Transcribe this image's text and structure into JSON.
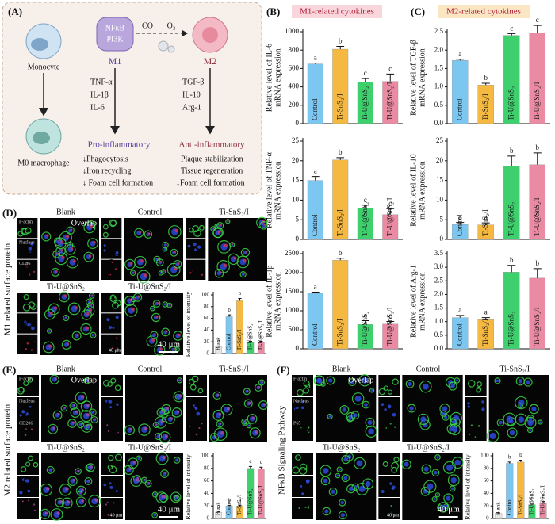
{
  "panel_a": {
    "label": "(A)",
    "monocyte": "Monocyte",
    "nfkb": "NFκB",
    "pi3k": "PI3K",
    "co": "CO",
    "o2": "O₂",
    "m1": "M1",
    "m2": "M2",
    "m1_cytokines": [
      "TNF-α",
      "IL-1β",
      "IL-6"
    ],
    "m2_cytokines": [
      "TGF-β",
      "IL-10",
      "Arg-1"
    ],
    "m0": "M0 macrophage",
    "pro": "Pro-inflammatory",
    "anti": "Anti-inflammatory",
    "pro_effects": [
      "↓Phagocytosis",
      "↓Iron recycling",
      "↓ Foam cell formation"
    ],
    "anti_effects": [
      "Plaque stabilization",
      "Tissue regeneration",
      "↓Foam cell formation"
    ]
  },
  "headers": [
    {
      "label": "(B)",
      "title": "M1-related cytokines"
    },
    {
      "label": "(C)",
      "title": "M2-related cytokines"
    }
  ],
  "micro": [
    {
      "label": "(D)",
      "side": "M1 related surface protein",
      "groups": [
        "Blank",
        "Control",
        "Ti-SnS₂/I",
        "Ti-U@SnS₂",
        "Ti-U@SnS₂/I"
      ],
      "overlap": "Overlap",
      "channels": [
        "F-actin",
        "Nucleus",
        "CD86"
      ],
      "scale": "40 μm"
    },
    {
      "label": "(E)",
      "side": "M2 related surface protein",
      "groups": [
        "Blank",
        "Control",
        "Ti-SnS₂/I",
        "Ti-U@SnS₂",
        "Ti-U@SnS₂/I"
      ],
      "overlap": "Overlap",
      "channels": [
        "F-actin",
        "Nucleus",
        "CD206"
      ],
      "scale": "40 μm"
    },
    {
      "label": "(F)",
      "side": "NFκB Signaling Pathway",
      "groups": [
        "Blank",
        "Control",
        "Ti-SnS₂/I",
        "Ti-U@SnS₂",
        "Ti-U@SnS₂/I"
      ],
      "overlap": "Overlap",
      "channels": [
        "F-actin",
        "Nucleus",
        "P65"
      ],
      "scale": "40 μm"
    }
  ],
  "chart_data": [
    {
      "type": "bar",
      "ylabel": [
        "Relative level of IL-6",
        "mRNA expression"
      ],
      "categories": [
        "Control",
        "Ti-SnS₂/I",
        "Ti-U@SnS₂",
        "Ti-U@SnS₂/I"
      ],
      "values": [
        650,
        810,
        450,
        460
      ],
      "errors": [
        10,
        30,
        40,
        80
      ],
      "letters": [
        "a",
        "b",
        "c",
        "c"
      ],
      "colors": [
        "#7cc6f2",
        "#f5b942",
        "#3fd06e",
        "#ea8aa3"
      ],
      "ylim": [
        0,
        1000
      ],
      "yticks": [
        0,
        200,
        400,
        600,
        800,
        1000
      ]
    },
    {
      "type": "bar",
      "ylabel": [
        "Relative level of TNF-α",
        "mRNA expression"
      ],
      "categories": [
        "Control",
        "Ti-SnS₂/I",
        "Ti-U@SnS₂",
        "Ti-U@SnS₂/I"
      ],
      "values": [
        15,
        20.2,
        8,
        6.3
      ],
      "errors": [
        1,
        0.6,
        0.7,
        1.5
      ],
      "letters": [
        "a",
        "b",
        "c",
        "c"
      ],
      "colors": [
        "#7cc6f2",
        "#f5b942",
        "#3fd06e",
        "#ea8aa3"
      ],
      "ylim": [
        0,
        25
      ],
      "yticks": [
        0,
        5,
        10,
        15,
        20,
        25
      ]
    },
    {
      "type": "bar",
      "ylabel": [
        "Relative level of IL-1β",
        "mRNA expression"
      ],
      "categories": [
        "Control",
        "Ti-SnS₂/I",
        "Ti-U@SnS₂",
        "Ti-U@SnS₂/I"
      ],
      "values": [
        1460,
        2330,
        640,
        650
      ],
      "errors": [
        30,
        50,
        100,
        70
      ],
      "letters": [
        "a",
        "b",
        "c",
        "c"
      ],
      "colors": [
        "#7cc6f2",
        "#f5b942",
        "#3fd06e",
        "#ea8aa3"
      ],
      "ylim": [
        0,
        2500
      ],
      "yticks": [
        0,
        500,
        1000,
        1500,
        2000,
        2500
      ]
    },
    {
      "type": "bar",
      "ylabel": [
        "Relative level of TGF-β",
        "mRNA expression"
      ],
      "categories": [
        "Control",
        "Ti-SnS₂/I",
        "Ti-U@SnS₂",
        "Ti-U@SnS₂/I"
      ],
      "values": [
        1.72,
        1.05,
        2.4,
        2.47
      ],
      "errors": [
        0.03,
        0.05,
        0.05,
        0.2
      ],
      "letters": [
        "a",
        "b",
        "c",
        "c"
      ],
      "colors": [
        "#7cc6f2",
        "#f5b942",
        "#3fd06e",
        "#ea8aa3"
      ],
      "ylim": [
        0,
        2.5
      ],
      "yticks": [
        {
          "value": 0,
          "label": "0.0"
        },
        0.5,
        {
          "value": 1,
          "label": "1.0"
        },
        1.5,
        {
          "value": 2,
          "label": "2.0"
        },
        2.5
      ]
    },
    {
      "type": "bar",
      "ylabel": [
        "Relative level of IL-10",
        "mRNA expression"
      ],
      "categories": [
        "Control",
        "Ti-SnS₂/I",
        "Ti-U@SnS₂",
        "Ti-U@SnS₂/I"
      ],
      "values": [
        3.8,
        3.7,
        18.7,
        19
      ],
      "errors": [
        0.5,
        0.5,
        2.5,
        3
      ],
      "letters": [
        "a",
        "a",
        "b",
        "b"
      ],
      "colors": [
        "#7cc6f2",
        "#f5b942",
        "#3fd06e",
        "#ea8aa3"
      ],
      "ylim": [
        0,
        25
      ],
      "yticks": [
        0,
        5,
        10,
        15,
        20,
        25
      ]
    },
    {
      "type": "bar",
      "ylabel": [
        "Relative level of Arg-1",
        "mRNA expression"
      ],
      "categories": [
        "Control",
        "Ti-SnS₂/I",
        "Ti-U@SnS₂",
        "Ti-U@SnS₂/I"
      ],
      "values": [
        1.15,
        1.07,
        2.82,
        2.6
      ],
      "errors": [
        0.08,
        0.08,
        0.25,
        0.35
      ],
      "letters": [
        "a",
        "a",
        "b",
        "b"
      ],
      "colors": [
        "#7cc6f2",
        "#f5b942",
        "#3fd06e",
        "#ea8aa3"
      ],
      "ylim": [
        0,
        3.5
      ],
      "yticks": [
        {
          "value": 0,
          "label": "0.0"
        },
        0.5,
        {
          "value": 1,
          "label": "1.0"
        },
        1.5,
        {
          "value": 2,
          "label": "2.0"
        },
        2.5,
        {
          "value": 3,
          "label": "3.0"
        },
        3.5
      ]
    },
    {
      "type": "bar",
      "ylabel": [
        "Relative level of intensity"
      ],
      "categories": [
        "Blank",
        "Control",
        "Ti-SnS₂/I",
        "Ti-U@SnS₂",
        "Ti-U@SnS₂/I"
      ],
      "values": [
        12,
        63,
        90,
        20,
        20
      ],
      "errors": [
        1,
        3,
        4,
        1,
        1
      ],
      "letters": [
        "a",
        "b",
        "b",
        "c",
        "c"
      ],
      "colors": [
        "#e6e6e6",
        "#7cc6f2",
        "#f5b942",
        "#3fd06e",
        "#ea8aa3"
      ],
      "ylim": [
        0,
        100
      ],
      "yticks": [
        0,
        20,
        40,
        60,
        80,
        100
      ]
    },
    {
      "type": "bar",
      "ylabel": [
        "Relative level of intensity"
      ],
      "categories": [
        "Blank",
        "Control",
        "Ti-SnS₂/I",
        "Ti-U@SnS₂",
        "Ti-U@SnS₂/I"
      ],
      "values": [
        10,
        20,
        20,
        80,
        79
      ],
      "errors": [
        1,
        1,
        1,
        3,
        3
      ],
      "letters": [
        "a",
        "b",
        "b",
        "c",
        "c"
      ],
      "colors": [
        "#e6e6e6",
        "#7cc6f2",
        "#f5b942",
        "#3fd06e",
        "#ea8aa3"
      ],
      "ylim": [
        0,
        100
      ],
      "yticks": [
        0,
        20,
        40,
        60,
        80,
        100
      ]
    },
    {
      "type": "bar",
      "ylabel": [
        "Relative level of intensity"
      ],
      "categories": [
        "Blank",
        "Control",
        "Ti-SnS₂/I",
        "Ti-U@SnS₂",
        "Ti-U@SnS₂/I"
      ],
      "values": [
        8,
        88,
        90,
        22,
        25
      ],
      "errors": [
        1,
        2,
        3,
        1,
        2
      ],
      "letters": [
        "a",
        "b",
        "b",
        "c",
        "c"
      ],
      "colors": [
        "#e6e6e6",
        "#7cc6f2",
        "#f5b942",
        "#3fd06e",
        "#ea8aa3"
      ],
      "ylim": [
        0,
        100
      ],
      "yticks": [
        0,
        20,
        40,
        60,
        80,
        100
      ]
    }
  ]
}
